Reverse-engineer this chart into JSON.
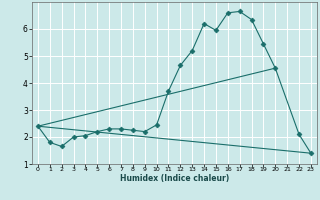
{
  "title": "",
  "xlabel": "Humidex (Indice chaleur)",
  "ylabel": "",
  "bg_color": "#cce9e9",
  "grid_color": "#ffffff",
  "line_color": "#1a6e6a",
  "xlim": [
    -0.5,
    23.5
  ],
  "ylim": [
    1,
    7
  ],
  "yticks": [
    1,
    2,
    3,
    4,
    5,
    6
  ],
  "xticks": [
    0,
    1,
    2,
    3,
    4,
    5,
    6,
    7,
    8,
    9,
    10,
    11,
    12,
    13,
    14,
    15,
    16,
    17,
    18,
    19,
    20,
    21,
    22,
    23
  ],
  "series": [
    {
      "x": [
        0,
        1,
        2,
        3,
        4,
        5,
        6,
        7,
        8,
        9,
        10,
        11,
        12,
        13,
        14,
        15,
        16,
        17,
        18,
        19,
        20,
        22,
        23
      ],
      "y": [
        2.4,
        1.8,
        1.65,
        2.0,
        2.05,
        2.2,
        2.3,
        2.3,
        2.25,
        2.2,
        2.45,
        3.7,
        4.65,
        5.2,
        6.2,
        5.95,
        6.6,
        6.65,
        6.35,
        5.45,
        4.55,
        2.1,
        1.4
      ],
      "marker": "D",
      "markersize": 2.5
    },
    {
      "x": [
        0,
        23
      ],
      "y": [
        2.4,
        1.4
      ],
      "marker": null
    },
    {
      "x": [
        0,
        20
      ],
      "y": [
        2.4,
        4.55
      ],
      "marker": null
    }
  ]
}
